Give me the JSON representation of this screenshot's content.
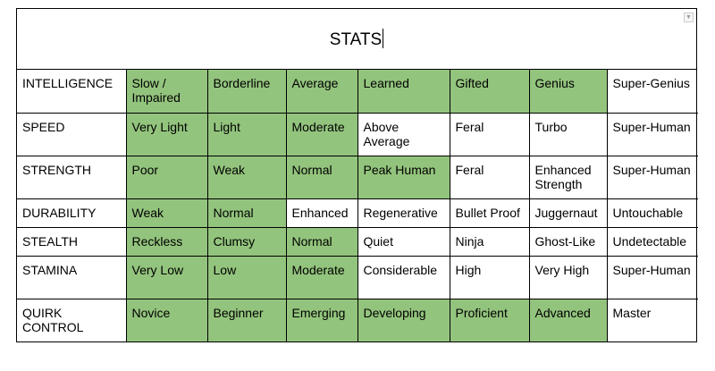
{
  "title": "STATS",
  "colors": {
    "filled": "#93c47d",
    "empty": "#ffffff"
  },
  "rows": [
    {
      "label": "INTELLIGENCE",
      "cells": [
        "Slow / Impaired",
        "Borderline",
        "Average",
        "Learned",
        "Gifted",
        "Genius",
        "Super-Genius"
      ],
      "filled": 6
    },
    {
      "label": "SPEED",
      "cells": [
        "Very Light",
        "Light",
        "Moderate",
        "Above Average",
        "Feral",
        "Turbo",
        "Super-Human"
      ],
      "filled": 3
    },
    {
      "label": "STRENGTH",
      "cells": [
        "Poor",
        "Weak",
        "Normal",
        "Peak Human",
        "Feral",
        "Enhanced Strength",
        "Super-Human"
      ],
      "filled": 4
    },
    {
      "label": "DURABILITY",
      "cells": [
        "Weak",
        "Normal",
        "Enhanced",
        "Regenerative",
        "Bullet Proof",
        "Juggernaut",
        "Untouchable"
      ],
      "filled": 2
    },
    {
      "label": "STEALTH",
      "cells": [
        "Reckless",
        "Clumsy",
        "Normal",
        "Quiet",
        "Ninja",
        "Ghost-Like",
        "Undetectable"
      ],
      "filled": 3
    },
    {
      "label": "STAMINA",
      "cells": [
        "Very Low",
        "Low",
        "Moderate",
        "Considerable",
        "High",
        "Very High",
        "Super-Human"
      ],
      "filled": 3
    },
    {
      "label": "QUIRK CONTROL",
      "cells": [
        "Novice",
        "Beginner",
        "Emerging",
        "Developing",
        "Proficient",
        "Advanced",
        "Master"
      ],
      "filled": 6
    }
  ]
}
